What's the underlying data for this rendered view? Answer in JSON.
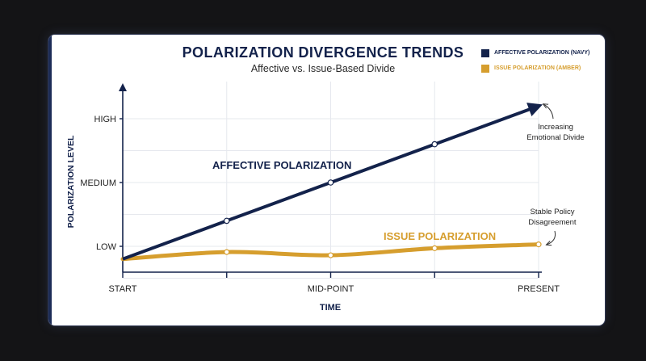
{
  "chart_data": {
    "type": "line",
    "title": "POLARIZATION DIVERGENCE TRENDS",
    "subtitle": "Affective vs. Issue-Based Divide",
    "xlabel": "TIME",
    "ylabel": "POLARIZATION LEVEL",
    "x_ticks": [
      "START",
      "MID-POINT",
      "PRESENT"
    ],
    "y_ticks": [
      {
        "label": "LOW",
        "value": 1
      },
      {
        "label": "MEDIUM",
        "value": 2
      },
      {
        "label": "HIGH",
        "value": 3
      }
    ],
    "x": [
      0,
      1,
      2,
      3,
      4
    ],
    "ylim": [
      0.8,
      3.3
    ],
    "xlim": [
      0,
      4
    ],
    "grid": true,
    "legend_position": "top-right",
    "series": [
      {
        "name": "AFFECTIVE POLARIZATION (NAVY)",
        "label": "AFFECTIVE POLARIZATION",
        "color": "#13224b",
        "values": [
          0.8,
          1.4,
          2.0,
          2.6,
          3.2
        ],
        "arrow": true,
        "annotation": "Increasing Emotional Divide"
      },
      {
        "name": "ISSUE POLARIZATION (AMBER)",
        "label": "ISSUE POLARIZATION",
        "color": "#d69e2e",
        "values": [
          0.8,
          0.91,
          0.86,
          0.97,
          1.03
        ],
        "arrow": false,
        "annotation": "Stable Policy Disagreement"
      }
    ]
  }
}
